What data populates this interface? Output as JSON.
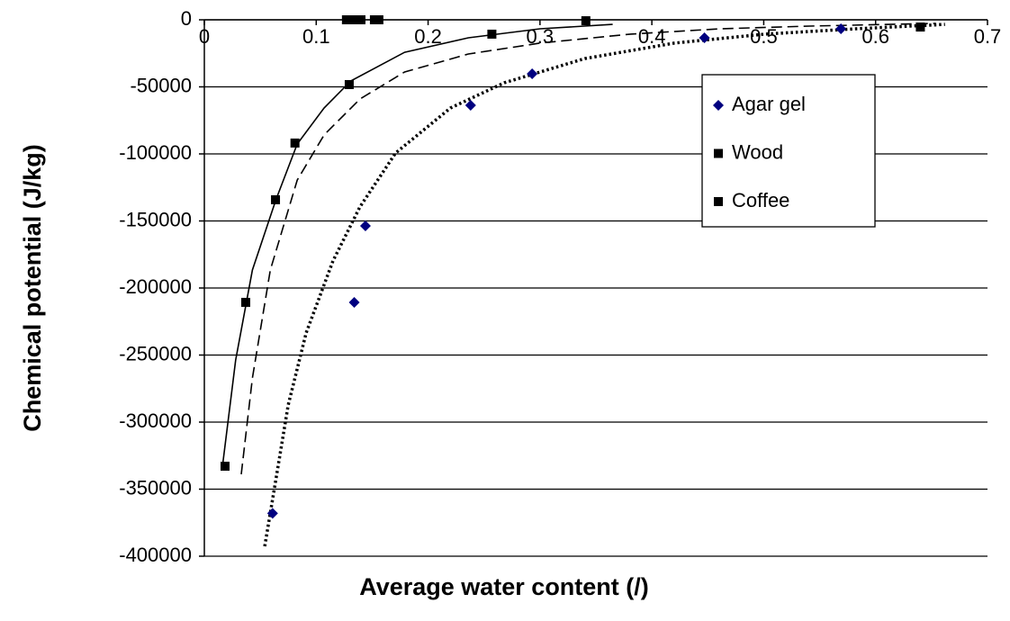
{
  "chart_data": {
    "type": "scatter",
    "x_label": "Average water content (/)",
    "y_label": "Chemical potential (J/kg)",
    "xlim": [
      0,
      0.7
    ],
    "ylim": [
      -400000,
      0
    ],
    "xticks": [
      0,
      0.1,
      0.2,
      0.3,
      0.4,
      0.5,
      0.6,
      0.7
    ],
    "yticks": [
      0,
      -50000,
      -100000,
      -150000,
      -200000,
      -250000,
      -300000,
      -350000,
      -400000
    ],
    "grid": true,
    "legend": "upper right",
    "series": [
      {
        "name": "Agar gel",
        "color": "#000080",
        "marker": "diamond",
        "x": [
          0.061,
          0.134,
          0.144,
          0.238,
          0.293,
          0.447,
          0.569
        ],
        "values": [
          -368000,
          -210700,
          -153700,
          -63800,
          -40300,
          -13400,
          -6700
        ],
        "trend": {
          "dash": "dotted",
          "x": [
            0.054,
            0.063,
            0.075,
            0.091,
            0.115,
            0.139,
            0.171,
            0.22,
            0.268,
            0.34,
            0.42,
            0.501,
            0.582,
            0.662
          ],
          "values": [
            -392600,
            -347600,
            -287200,
            -233500,
            -179800,
            -139600,
            -99300,
            -65800,
            -47000,
            -28900,
            -17400,
            -10700,
            -6700,
            -3400
          ]
        }
      },
      {
        "name": "Wood",
        "color": "#000000",
        "marker": "square",
        "x": [
          0.0185,
          0.037,
          0.0636,
          0.081,
          0.1295,
          0.341
        ],
        "values": [
          -332900,
          -210700,
          -134200,
          -91900,
          -48300,
          -700
        ],
        "trend": {
          "dash": "solid",
          "x": [
            0.016,
            0.028,
            0.043,
            0.064,
            0.083,
            0.107,
            0.131,
            0.179,
            0.236,
            0.3,
            0.365
          ],
          "values": [
            -334200,
            -253700,
            -186600,
            -134200,
            -92600,
            -65800,
            -45600,
            -24200,
            -13400,
            -6700,
            -3400
          ]
        }
      },
      {
        "name": "Coffee",
        "color": "#000000",
        "marker": "square",
        "x": [
          0.127,
          0.132,
          0.137,
          0.14,
          0.152,
          0.156,
          0.257,
          0.64
        ],
        "values": [
          0,
          0,
          0,
          0,
          0,
          0,
          -10700,
          -5400
        ],
        "trend": {
          "dash": "dashed",
          "x": [
            0.033,
            0.043,
            0.059,
            0.083,
            0.107,
            0.139,
            0.179,
            0.236,
            0.3,
            0.381,
            0.461,
            0.541,
            0.654
          ],
          "values": [
            -338900,
            -267100,
            -186600,
            -119500,
            -85900,
            -59100,
            -38900,
            -25500,
            -17400,
            -10700,
            -6700,
            -4700,
            -2700
          ]
        }
      }
    ]
  }
}
